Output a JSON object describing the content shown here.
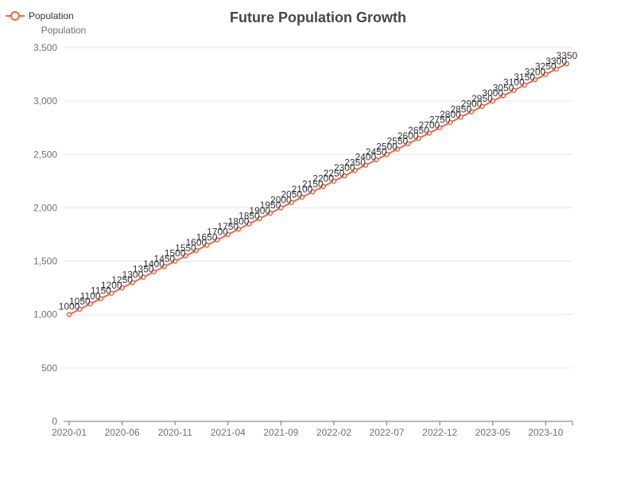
{
  "chart_data": {
    "type": "line",
    "title": "Future Population Growth",
    "legend": {
      "position": "top-left",
      "entries": [
        "Population"
      ]
    },
    "ylabel": "Population",
    "xlabel": "",
    "x": [
      "2020-01",
      "2020-02",
      "2020-03",
      "2020-04",
      "2020-05",
      "2020-06",
      "2020-07",
      "2020-08",
      "2020-09",
      "2020-10",
      "2020-11",
      "2020-12",
      "2021-01",
      "2021-02",
      "2021-03",
      "2021-04",
      "2021-05",
      "2021-06",
      "2021-07",
      "2021-08",
      "2021-09",
      "2021-10",
      "2021-11",
      "2021-12",
      "2022-01",
      "2022-02",
      "2022-03",
      "2022-04",
      "2022-05",
      "2022-06",
      "2022-07",
      "2022-08",
      "2022-09",
      "2022-10",
      "2022-11",
      "2022-12",
      "2023-01",
      "2023-02",
      "2023-03",
      "2023-04",
      "2023-05",
      "2023-06",
      "2023-07",
      "2023-08",
      "2023-09",
      "2023-10",
      "2023-11",
      "2023-12"
    ],
    "x_tick_labels": [
      "2020-01",
      "2020-06",
      "2020-11",
      "2021-04",
      "2021-09",
      "2022-02",
      "2022-07",
      "2022-12",
      "2023-05",
      "2023-10"
    ],
    "series": [
      {
        "name": "Population",
        "values": [
          1000,
          1050,
          1100,
          1150,
          1200,
          1250,
          1300,
          1350,
          1400,
          1450,
          1500,
          1550,
          1600,
          1650,
          1700,
          1750,
          1800,
          1850,
          1900,
          1950,
          2000,
          2050,
          2100,
          2150,
          2200,
          2250,
          2300,
          2350,
          2400,
          2450,
          2500,
          2550,
          2600,
          2650,
          2700,
          2750,
          2800,
          2850,
          2900,
          2950,
          3000,
          3050,
          3100,
          3150,
          3200,
          3250,
          3300,
          3350
        ]
      }
    ],
    "ylim": [
      0,
      3500
    ],
    "y_ticks": [
      0,
      500,
      1000,
      1500,
      2000,
      2500,
      3000,
      3500
    ],
    "grid": true,
    "colors": {
      "series": "#ee6644",
      "grid": "#e0e6f1",
      "axis": "#6e7079",
      "title": "#464646"
    }
  }
}
